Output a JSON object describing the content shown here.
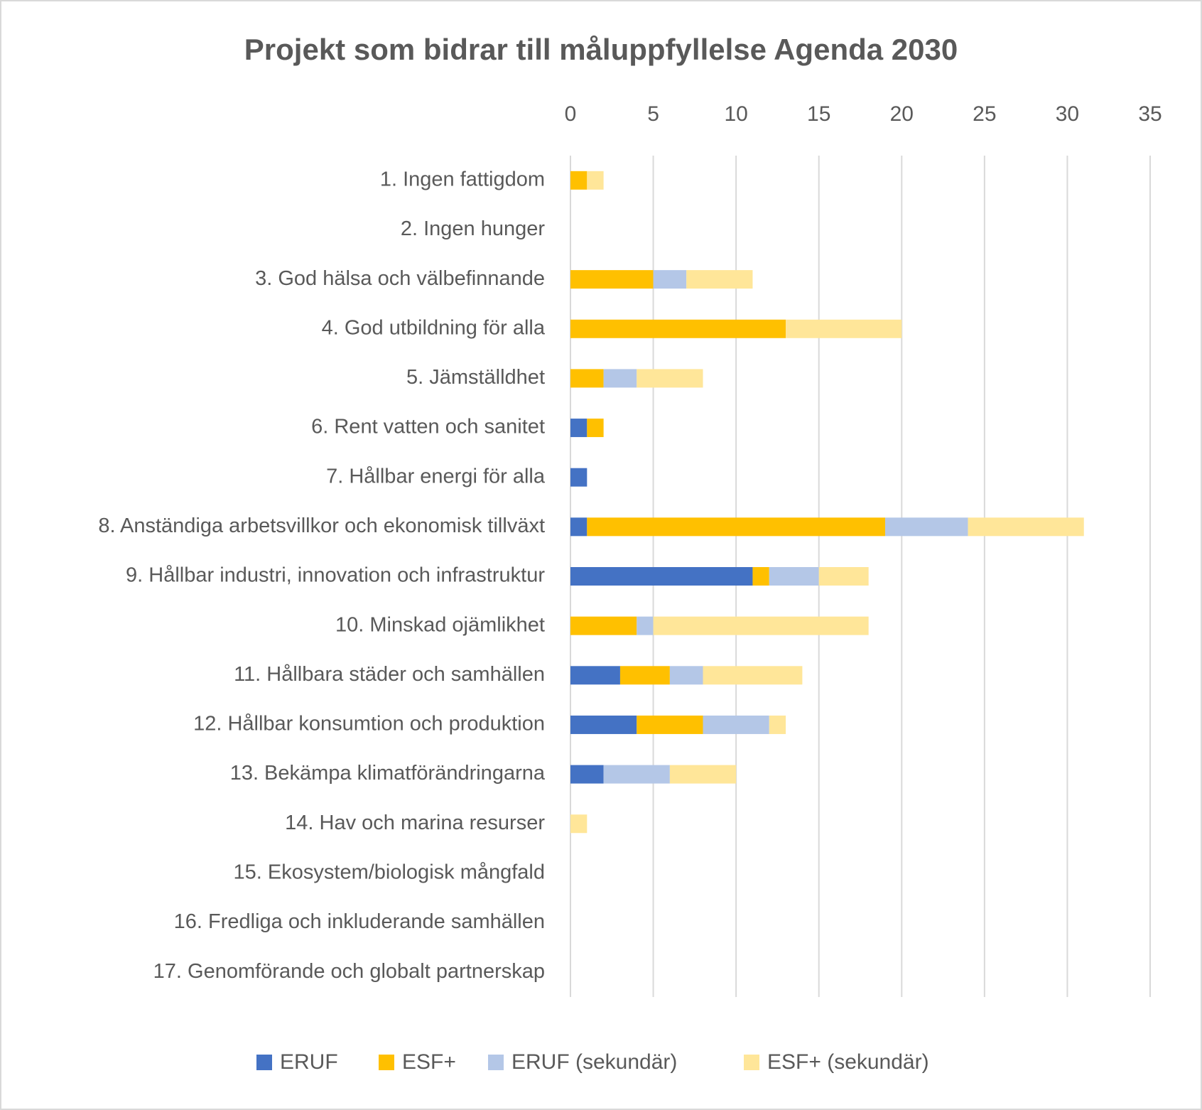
{
  "chart_data": {
    "type": "stacked-bar-horizontal",
    "title": "Projekt som bidrar till måluppfyllelse Agenda 2030",
    "categories": [
      "1. Ingen fattigdom",
      "2. Ingen hunger",
      "3. God hälsa och välbefinnande",
      "4. God utbildning för alla",
      "5. Jämställdhet",
      "6. Rent vatten och sanitet",
      "7. Hållbar energi för alla",
      "8. Anständiga arbetsvillkor och ekonomisk tillväxt",
      "9. Hållbar industri, innovation och infrastruktur",
      "10. Minskad ojämlikhet",
      "11. Hållbara städer och samhällen",
      "12. Hållbar konsumtion och produktion",
      "13. Bekämpa klimatförändringarna",
      "14. Hav och marina resurser",
      "15. Ekosystem/biologisk mångfald",
      "16. Fredliga och inkluderande samhällen",
      "17. Genomförande och globalt partnerskap"
    ],
    "series": [
      {
        "name": "ERUF",
        "color": "#4472c4",
        "values": [
          0,
          0,
          0,
          0,
          0,
          1,
          1,
          1,
          11,
          0,
          3,
          4,
          2,
          0,
          0,
          0,
          0
        ]
      },
      {
        "name": "ESF+",
        "color": "#ffc000",
        "values": [
          1,
          0,
          5,
          13,
          2,
          1,
          0,
          18,
          1,
          4,
          3,
          4,
          0,
          0,
          0,
          0,
          0
        ]
      },
      {
        "name": "ERUF (sekundär)",
        "color": "#b4c7e7",
        "values": [
          0,
          0,
          2,
          0,
          2,
          0,
          0,
          5,
          3,
          1,
          2,
          4,
          4,
          0,
          0,
          0,
          0
        ]
      },
      {
        "name": "ESF+ (sekundär)",
        "color": "#ffe699",
        "values": [
          1,
          0,
          4,
          7,
          4,
          0,
          0,
          7,
          3,
          13,
          6,
          1,
          4,
          1,
          0,
          0,
          0
        ]
      }
    ],
    "xlim": [
      0,
      35
    ],
    "xticks": [
      0,
      5,
      10,
      15,
      20,
      25,
      30,
      35
    ],
    "grid": true,
    "legend": "bottom"
  }
}
